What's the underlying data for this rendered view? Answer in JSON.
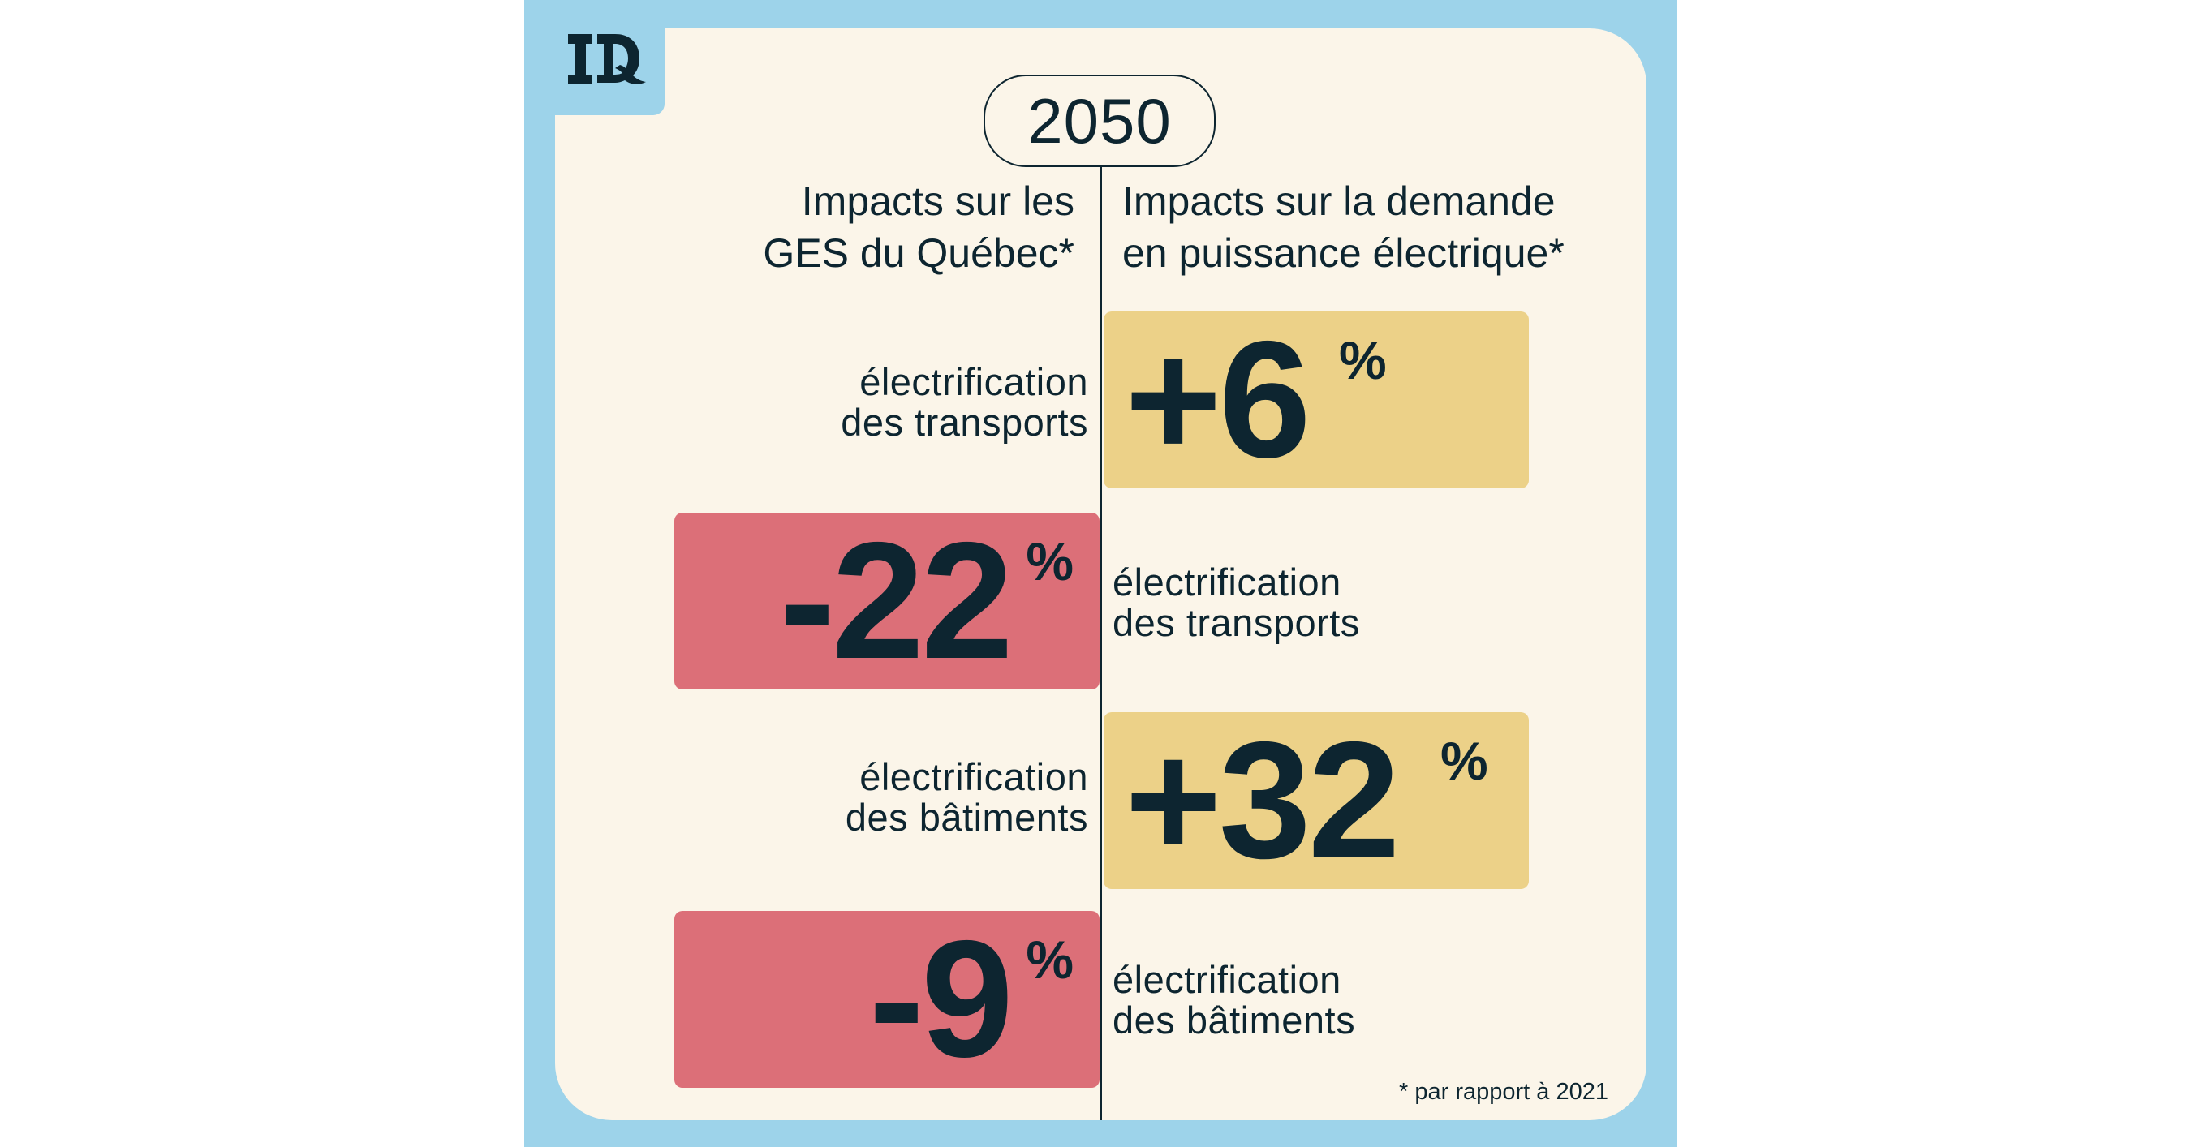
{
  "brand": {
    "logo_text": "IQ"
  },
  "colors": {
    "background_blue": "#9dd3ea",
    "card": "#fbf5e9",
    "positive_box": "#ecd188",
    "negative_box": "#dc6f78",
    "text": "#0d2530"
  },
  "year": "2050",
  "headings": {
    "left": [
      "Impacts sur les",
      "GES du Québec*"
    ],
    "right": [
      "Impacts sur la demande",
      "en puissance électrique*"
    ]
  },
  "rows": [
    {
      "value": "+6",
      "unit": "%",
      "label": [
        "électrification",
        "des transports"
      ]
    },
    {
      "value": "-22",
      "unit": "%",
      "label": [
        "électrification",
        "des transports"
      ]
    },
    {
      "value": "+32",
      "unit": "%",
      "label": [
        "électrification",
        "des bâtiments"
      ]
    },
    {
      "value": "-9",
      "unit": "%",
      "label": [
        "électrification",
        "des bâtiments"
      ]
    }
  ],
  "footnote": "* par rapport à 2021"
}
